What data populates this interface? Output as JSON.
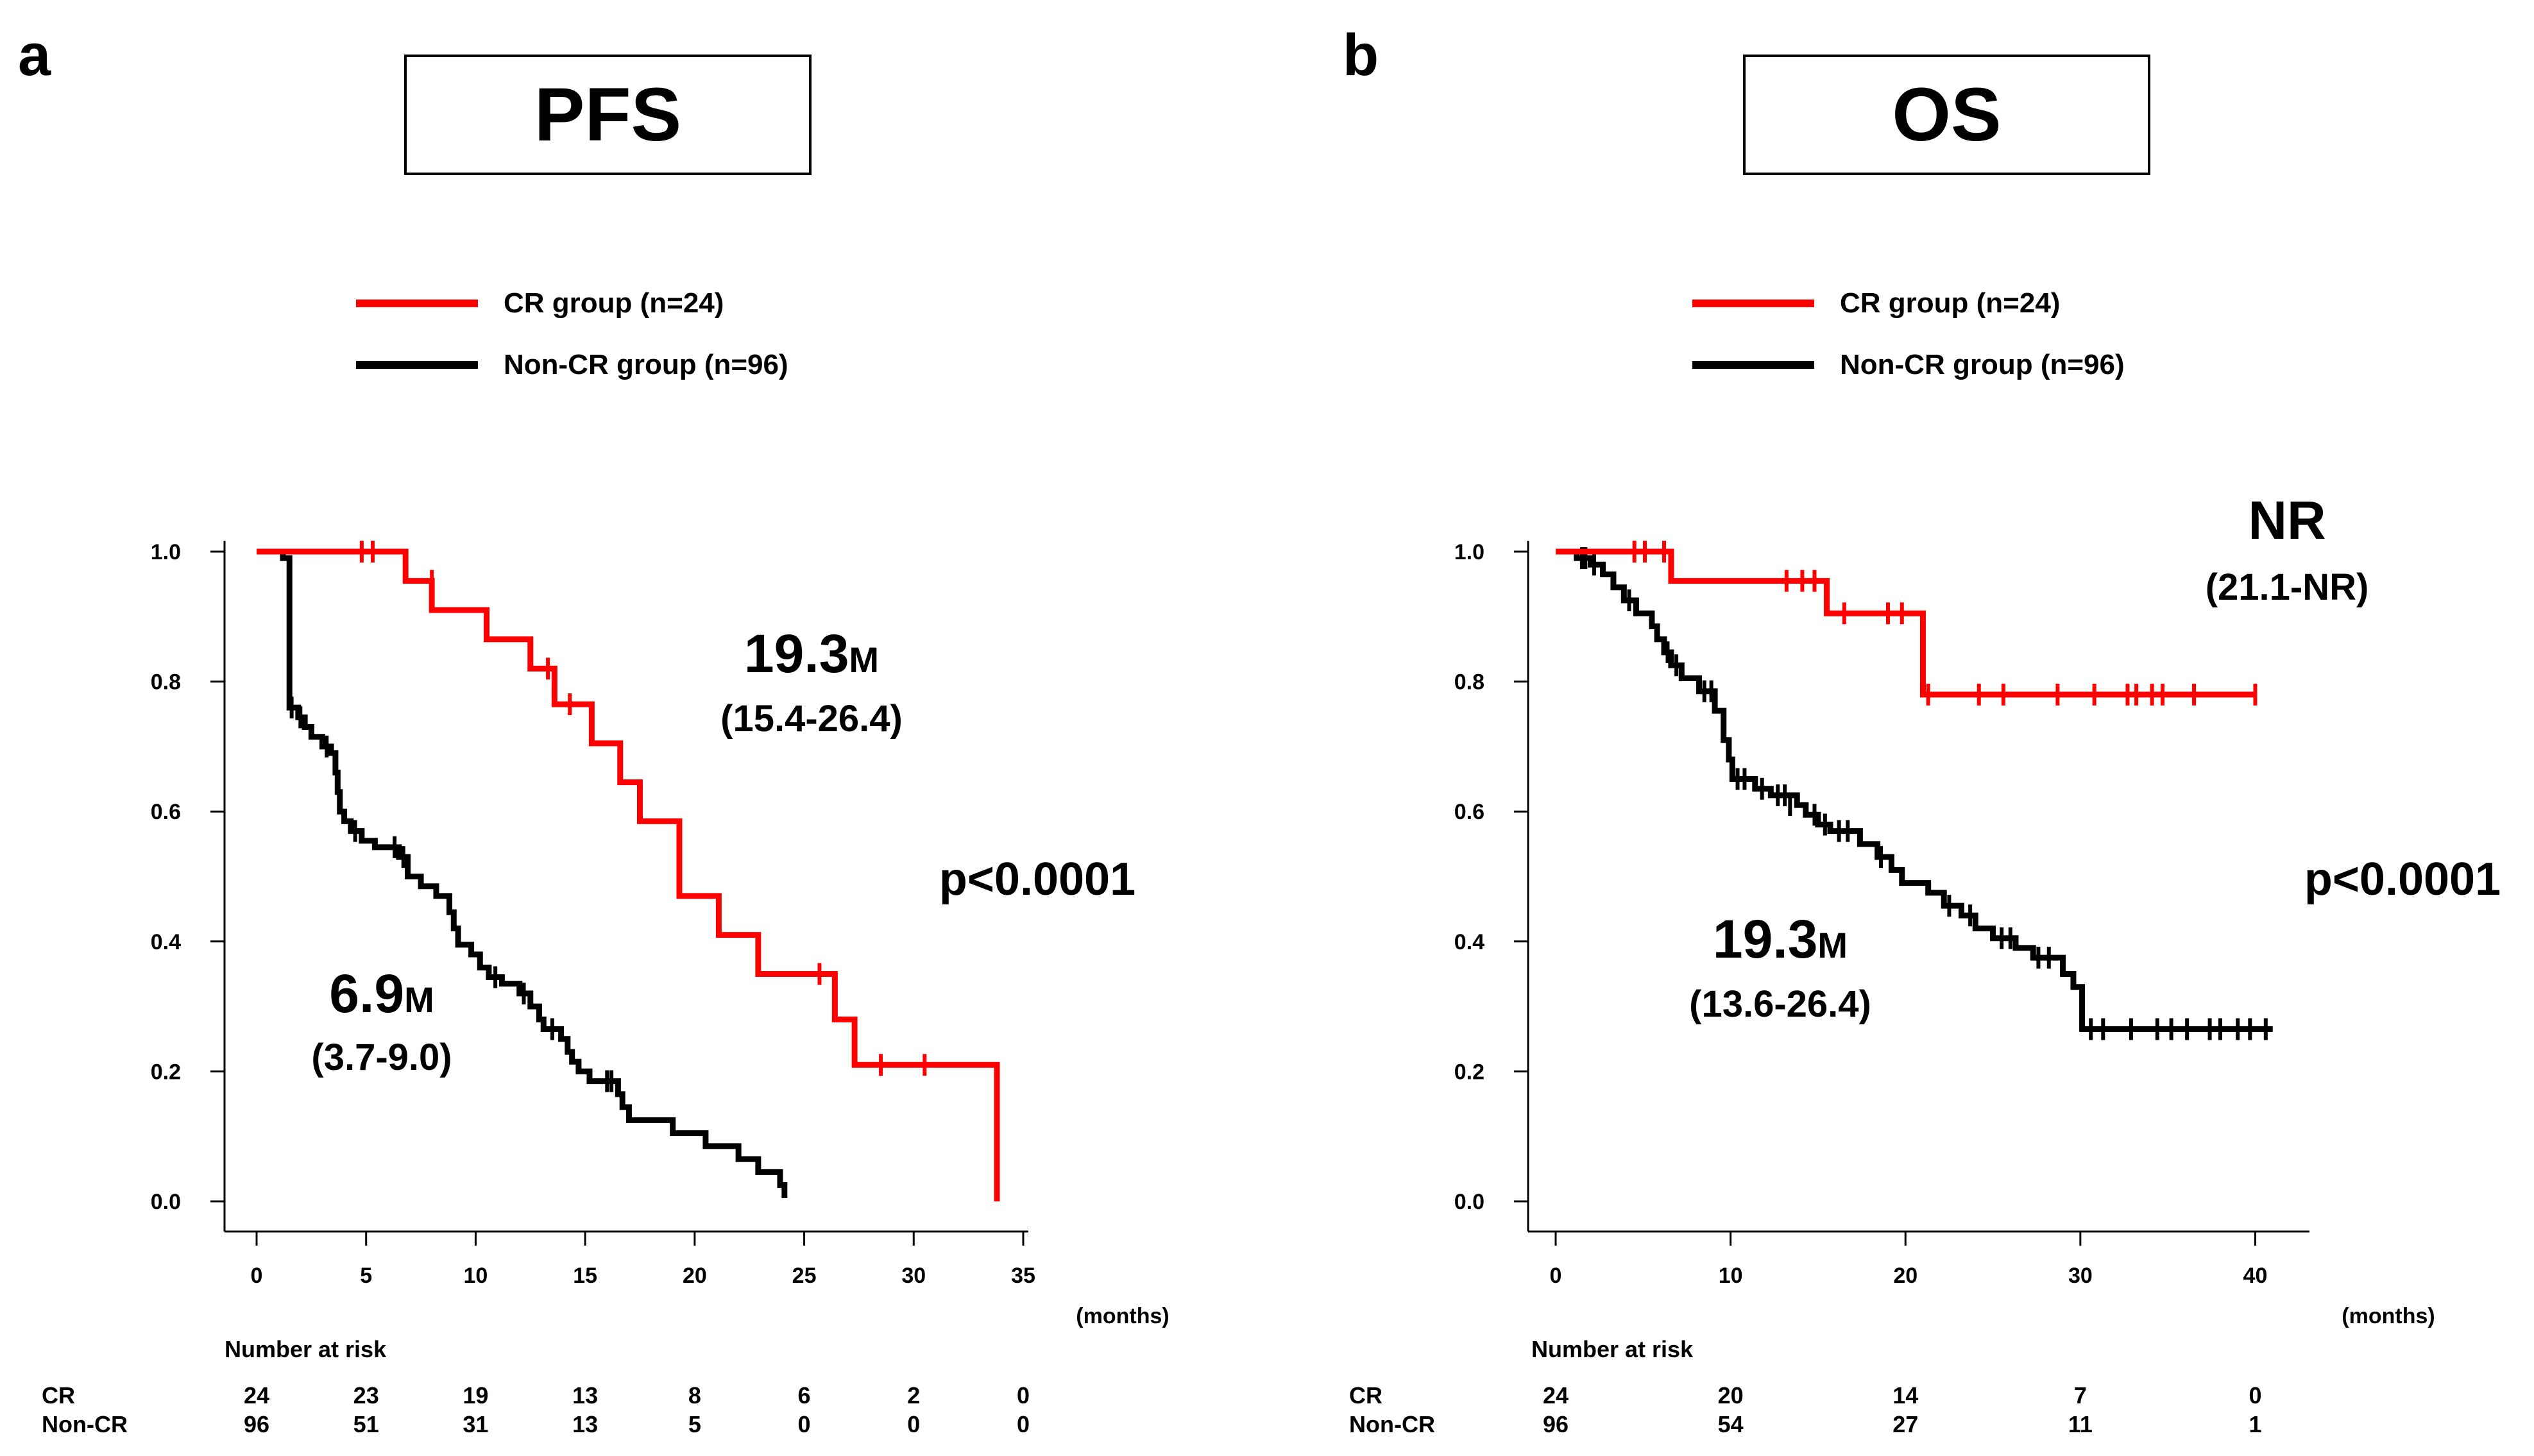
{
  "colors": {
    "cr": "#ff0000",
    "noncr": "#000000"
  },
  "chart_data": [
    {
      "panel_letter": "a",
      "title": "PFS",
      "type": "line",
      "subtype": "kaplan-meier",
      "legend": [
        "CR group (n=24)",
        "Non-CR group (n=96)"
      ],
      "xlabel": "(months)",
      "xlim": [
        0,
        35
      ],
      "ylim": [
        0,
        1
      ],
      "x_ticks": [
        0,
        5,
        10,
        15,
        20,
        25,
        30,
        35
      ],
      "x_tick_labels": [
        "0",
        "5",
        "10",
        "15",
        "20",
        "25",
        "30",
        "35"
      ],
      "y_ticks": [
        0,
        0.2,
        0.4,
        0.6,
        0.8,
        1.0
      ],
      "y_tick_labels": [
        "0.0",
        "0.2",
        "0.4",
        "0.6",
        "0.8",
        "1.0"
      ],
      "series": [
        {
          "name": "CR group (n=24)",
          "color_key": "cr",
          "steps": [
            [
              0,
              1.0
            ],
            [
              6.8,
              0.955
            ],
            [
              8.0,
              0.91
            ],
            [
              10.5,
              0.865
            ],
            [
              12.5,
              0.82
            ],
            [
              13.6,
              0.765
            ],
            [
              15.3,
              0.705
            ],
            [
              16.6,
              0.645
            ],
            [
              17.5,
              0.585
            ],
            [
              19.3,
              0.47
            ],
            [
              21.1,
              0.41
            ],
            [
              22.9,
              0.35
            ],
            [
              26.4,
              0.28
            ],
            [
              27.3,
              0.21
            ],
            [
              33.8,
              0.0
            ]
          ],
          "end": 33.8,
          "censors": [
            [
              4.8,
              1.0
            ],
            [
              5.3,
              1.0
            ],
            [
              8.0,
              0.955
            ],
            [
              13.3,
              0.82
            ],
            [
              14.3,
              0.765
            ],
            [
              25.7,
              0.35
            ],
            [
              28.5,
              0.21
            ],
            [
              30.5,
              0.21
            ]
          ]
        },
        {
          "name": "Non-CR group (n=96)",
          "color_key": "noncr",
          "steps": [
            [
              0,
              1.0
            ],
            [
              1.2,
              0.99
            ],
            [
              1.5,
              0.76
            ],
            [
              1.9,
              0.745
            ],
            [
              2.2,
              0.73
            ],
            [
              2.5,
              0.715
            ],
            [
              3.0,
              0.7
            ],
            [
              3.4,
              0.69
            ],
            [
              3.6,
              0.66
            ],
            [
              3.7,
              0.63
            ],
            [
              3.8,
              0.6
            ],
            [
              4.0,
              0.585
            ],
            [
              4.3,
              0.57
            ],
            [
              4.8,
              0.555
            ],
            [
              5.4,
              0.545
            ],
            [
              6.5,
              0.53
            ],
            [
              6.9,
              0.5
            ],
            [
              7.5,
              0.485
            ],
            [
              8.2,
              0.47
            ],
            [
              8.8,
              0.445
            ],
            [
              9.0,
              0.42
            ],
            [
              9.2,
              0.395
            ],
            [
              9.8,
              0.38
            ],
            [
              10.2,
              0.36
            ],
            [
              10.6,
              0.345
            ],
            [
              11.2,
              0.335
            ],
            [
              12.0,
              0.32
            ],
            [
              12.5,
              0.3
            ],
            [
              12.9,
              0.28
            ],
            [
              13.1,
              0.265
            ],
            [
              13.9,
              0.25
            ],
            [
              14.2,
              0.23
            ],
            [
              14.4,
              0.215
            ],
            [
              14.7,
              0.2
            ],
            [
              15.2,
              0.185
            ],
            [
              16.5,
              0.165
            ],
            [
              16.7,
              0.145
            ],
            [
              17.0,
              0.125
            ],
            [
              19.0,
              0.105
            ],
            [
              20.5,
              0.085
            ],
            [
              22.0,
              0.065
            ],
            [
              22.9,
              0.045
            ],
            [
              23.9,
              0.025
            ],
            [
              24.1,
              0.005
            ]
          ],
          "end": 24.1,
          "censors": [
            [
              1.6,
              0.76
            ],
            [
              2.0,
              0.745
            ],
            [
              3.2,
              0.7
            ],
            [
              4.5,
              0.57
            ],
            [
              6.3,
              0.545
            ],
            [
              6.7,
              0.53
            ],
            [
              10.9,
              0.345
            ],
            [
              12.2,
              0.32
            ],
            [
              13.5,
              0.265
            ],
            [
              16.0,
              0.185
            ],
            [
              16.2,
              0.185
            ]
          ]
        }
      ],
      "annotations": {
        "cr_median": "19.3",
        "cr_median_unit": "M",
        "cr_ci": "(15.4-26.4)",
        "noncr_median": "6.9",
        "noncr_median_unit": "M",
        "noncr_ci": "(3.7-9.0)",
        "p_value": "p<0.0001"
      },
      "risk_table": {
        "title": "Number at risk",
        "times": [
          0,
          5,
          10,
          15,
          20,
          25,
          30,
          35
        ],
        "rows": [
          {
            "label": "CR",
            "values": [
              "24",
              "23",
              "19",
              "13",
              "8",
              "6",
              "2",
              "0"
            ]
          },
          {
            "label": "Non-CR",
            "values": [
              "96",
              "51",
              "31",
              "13",
              "5",
              "0",
              "0",
              "0"
            ]
          }
        ]
      }
    },
    {
      "panel_letter": "b",
      "title": "OS",
      "type": "line",
      "subtype": "kaplan-meier",
      "legend": [
        "CR group (n=24)",
        "Non-CR group (n=96)"
      ],
      "xlabel": "(months)",
      "xlim": [
        0,
        42
      ],
      "ylim": [
        0,
        1
      ],
      "x_ticks": [
        0,
        10,
        20,
        30,
        40
      ],
      "x_tick_labels": [
        "0",
        "10",
        "20",
        "30",
        "40"
      ],
      "y_ticks": [
        0,
        0.2,
        0.4,
        0.6,
        0.8,
        1.0
      ],
      "y_tick_labels": [
        "0.0",
        "0.2",
        "0.4",
        "0.6",
        "0.8",
        "1.0"
      ],
      "series": [
        {
          "name": "CR group (n=24)",
          "color_key": "cr",
          "steps": [
            [
              0,
              1.0
            ],
            [
              6.6,
              0.955
            ],
            [
              15.5,
              0.905
            ],
            [
              21.0,
              0.78
            ]
          ],
          "end": 40.0,
          "censors": [
            [
              4.5,
              1.0
            ],
            [
              5.1,
              1.0
            ],
            [
              6.2,
              1.0
            ],
            [
              13.2,
              0.955
            ],
            [
              14.1,
              0.955
            ],
            [
              14.8,
              0.955
            ],
            [
              16.5,
              0.905
            ],
            [
              19.0,
              0.905
            ],
            [
              19.8,
              0.905
            ],
            [
              21.3,
              0.78
            ],
            [
              24.2,
              0.78
            ],
            [
              25.6,
              0.78
            ],
            [
              28.7,
              0.78
            ],
            [
              30.8,
              0.78
            ],
            [
              32.7,
              0.78
            ],
            [
              33.2,
              0.78
            ],
            [
              34.1,
              0.78
            ],
            [
              34.7,
              0.78
            ],
            [
              36.5,
              0.78
            ],
            [
              40.0,
              0.78
            ]
          ]
        },
        {
          "name": "Non-CR group (n=96)",
          "color_key": "noncr",
          "steps": [
            [
              0,
              1.0
            ],
            [
              1.2,
              0.99
            ],
            [
              2.0,
              0.98
            ],
            [
              2.7,
              0.965
            ],
            [
              3.3,
              0.945
            ],
            [
              3.9,
              0.925
            ],
            [
              4.6,
              0.905
            ],
            [
              5.5,
              0.885
            ],
            [
              5.8,
              0.865
            ],
            [
              6.2,
              0.845
            ],
            [
              6.6,
              0.825
            ],
            [
              7.2,
              0.805
            ],
            [
              8.2,
              0.785
            ],
            [
              9.1,
              0.755
            ],
            [
              9.6,
              0.71
            ],
            [
              9.9,
              0.68
            ],
            [
              10.1,
              0.65
            ],
            [
              11.4,
              0.635
            ],
            [
              12.3,
              0.625
            ],
            [
              13.8,
              0.61
            ],
            [
              14.3,
              0.595
            ],
            [
              15.0,
              0.58
            ],
            [
              15.7,
              0.57
            ],
            [
              17.4,
              0.55
            ],
            [
              18.4,
              0.53
            ],
            [
              19.2,
              0.51
            ],
            [
              19.8,
              0.49
            ],
            [
              21.3,
              0.475
            ],
            [
              22.2,
              0.455
            ],
            [
              23.2,
              0.44
            ],
            [
              24.0,
              0.42
            ],
            [
              25.0,
              0.405
            ],
            [
              26.3,
              0.39
            ],
            [
              27.3,
              0.375
            ],
            [
              29.0,
              0.35
            ],
            [
              29.6,
              0.33
            ],
            [
              30.1,
              0.265
            ]
          ],
          "end": 41.0,
          "censors": [
            [
              1.5,
              0.99
            ],
            [
              1.7,
              0.99
            ],
            [
              2.2,
              0.98
            ],
            [
              4.2,
              0.925
            ],
            [
              6.4,
              0.845
            ],
            [
              6.9,
              0.825
            ],
            [
              8.5,
              0.785
            ],
            [
              8.9,
              0.785
            ],
            [
              10.4,
              0.65
            ],
            [
              10.8,
              0.65
            ],
            [
              11.8,
              0.635
            ],
            [
              12.7,
              0.625
            ],
            [
              13.1,
              0.625
            ],
            [
              13.4,
              0.61
            ],
            [
              14.8,
              0.595
            ],
            [
              15.4,
              0.58
            ],
            [
              16.2,
              0.57
            ],
            [
              16.7,
              0.57
            ],
            [
              18.6,
              0.53
            ],
            [
              22.5,
              0.455
            ],
            [
              23.7,
              0.44
            ],
            [
              25.5,
              0.405
            ],
            [
              26.0,
              0.405
            ],
            [
              27.6,
              0.375
            ],
            [
              28.2,
              0.375
            ],
            [
              30.6,
              0.265
            ],
            [
              31.3,
              0.265
            ],
            [
              32.9,
              0.265
            ],
            [
              34.4,
              0.265
            ],
            [
              35.2,
              0.265
            ],
            [
              36.1,
              0.265
            ],
            [
              37.4,
              0.265
            ],
            [
              38.0,
              0.265
            ],
            [
              39.0,
              0.265
            ],
            [
              39.7,
              0.265
            ],
            [
              40.6,
              0.265
            ]
          ]
        }
      ],
      "annotations": {
        "cr_median": "NR",
        "cr_ci": "(21.1-NR)",
        "noncr_median": "19.3",
        "noncr_median_unit": "M",
        "noncr_ci": "(13.6-26.4)",
        "p_value": "p<0.0001"
      },
      "risk_table": {
        "title": "Number at risk",
        "times": [
          0,
          10,
          20,
          30,
          40
        ],
        "rows": [
          {
            "label": "CR",
            "values": [
              "24",
              "20",
              "14",
              "7",
              "0"
            ]
          },
          {
            "label": "Non-CR",
            "values": [
              "96",
              "54",
              "27",
              "11",
              "1"
            ]
          }
        ]
      }
    }
  ]
}
